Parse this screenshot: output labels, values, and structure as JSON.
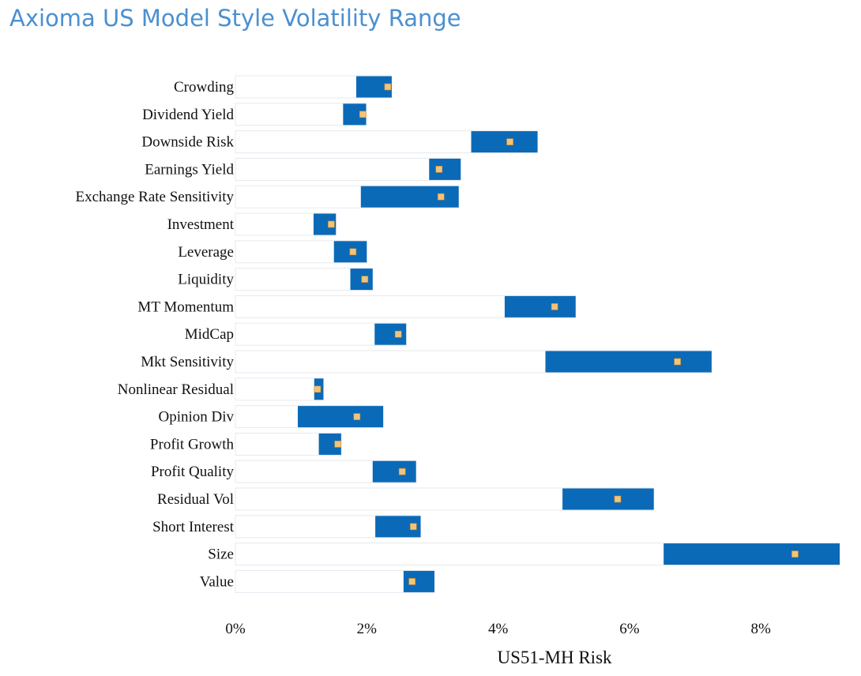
{
  "title": "Axioma US Model Style Volatility Range",
  "colors": {
    "range_bar": "#0a6ab8",
    "marker_fill": "#f4c37a",
    "marker_stroke": "#c98a2e",
    "track_fill": "#ffffff",
    "track_stroke": "#e6e9ee"
  },
  "chart_data": {
    "type": "bar",
    "title": "Axioma US Model Style Volatility Range",
    "xlabel": "US51-MH Risk",
    "ylabel": "",
    "xlim": [
      0,
      9.2
    ],
    "x_ticks": [
      0,
      2,
      4,
      6,
      8
    ],
    "x_tick_labels": [
      "0%",
      "2%",
      "4%",
      "6%",
      "8%"
    ],
    "categories": [
      "Crowding",
      "Dividend Yield",
      "Downside Risk",
      "Earnings Yield",
      "Exchange Rate Sensitivity",
      "Investment",
      "Leverage",
      "Liquidity",
      "MT Momentum",
      "MidCap",
      "Mkt Sensitivity",
      "Nonlinear Residual",
      "Opinion Div",
      "Profit Growth",
      "Profit Quality",
      "Residual Vol",
      "Short Interest",
      "Size",
      "Value"
    ],
    "series": [
      {
        "name": "min",
        "values": [
          1.84,
          1.64,
          3.59,
          2.95,
          1.91,
          1.19,
          1.5,
          1.75,
          4.1,
          2.12,
          4.72,
          1.2,
          0.95,
          1.27,
          2.09,
          4.98,
          2.13,
          6.52,
          2.56
        ]
      },
      {
        "name": "max",
        "values": [
          2.38,
          1.99,
          4.6,
          3.43,
          3.4,
          1.53,
          2.0,
          2.09,
          5.18,
          2.6,
          7.25,
          1.34,
          2.25,
          1.61,
          2.75,
          6.37,
          2.82,
          9.2,
          3.03
        ]
      },
      {
        "name": "current",
        "values": [
          2.32,
          1.94,
          4.18,
          3.1,
          3.13,
          1.46,
          1.79,
          1.97,
          4.86,
          2.48,
          6.73,
          1.25,
          1.85,
          1.56,
          2.54,
          5.82,
          2.71,
          8.52,
          2.69
        ]
      }
    ],
    "grid": false,
    "legend": "none"
  }
}
